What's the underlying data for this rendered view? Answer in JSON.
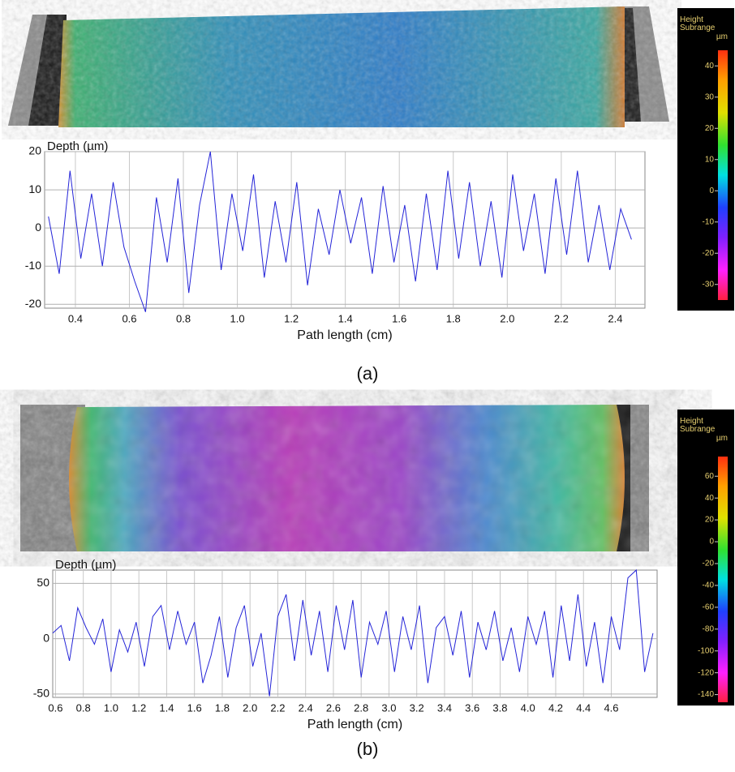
{
  "chart_data": [
    {
      "type": "line",
      "panel_label": "(a)",
      "ylabel": "Depth (µm)",
      "xlabel": "Path length (cm)",
      "color": "#2424d8",
      "grid": true,
      "xlim": [
        0.286,
        2.51
      ],
      "ylim": [
        -21,
        20
      ],
      "xticks": [
        0.4,
        0.6,
        0.8,
        {
          "value": 1,
          "label": "1.0"
        },
        1.2,
        1.4,
        1.6,
        1.8,
        {
          "value": 2,
          "label": "2.0"
        },
        2.2,
        2.4
      ],
      "yticks": [
        20,
        10,
        0,
        -10,
        -20
      ],
      "x": [
        0.3,
        0.34,
        0.38,
        0.42,
        0.46,
        0.5,
        0.54,
        0.58,
        0.62,
        0.66,
        0.7,
        0.74,
        0.78,
        0.82,
        0.86,
        0.9,
        0.94,
        0.98,
        1.02,
        1.06,
        1.1,
        1.14,
        1.18,
        1.22,
        1.26,
        1.3,
        1.34,
        1.38,
        1.42,
        1.46,
        1.5,
        1.54,
        1.58,
        1.62,
        1.66,
        1.7,
        1.74,
        1.78,
        1.82,
        1.86,
        1.9,
        1.94,
        1.98,
        2.02,
        2.06,
        2.1,
        2.14,
        2.18,
        2.22,
        2.26,
        2.3,
        2.34,
        2.38,
        2.42,
        2.46
      ],
      "values": [
        3,
        -12,
        15,
        -8,
        9,
        -10,
        12,
        -5,
        -14,
        -22,
        8,
        -9,
        13,
        -17,
        6,
        20,
        -11,
        9,
        -6,
        14,
        -13,
        7,
        -9,
        12,
        -15,
        5,
        -7,
        10,
        -4,
        8,
        -12,
        11,
        -9,
        6,
        -14,
        9,
        -11,
        15,
        -8,
        12,
        -10,
        7,
        -13,
        14,
        -6,
        9,
        -12,
        13,
        -7,
        15,
        -9,
        6,
        -11,
        5,
        -3
      ],
      "colorbar": {
        "title": "Height Subrange",
        "unit": "µm",
        "ylim": [
          -35,
          45
        ],
        "yticks": [
          40,
          30,
          20,
          10,
          0,
          -10,
          -20,
          -30
        ]
      }
    },
    {
      "type": "line",
      "panel_label": "(b)",
      "ylabel": "Depth (µm)",
      "xlabel": "Path length (cm)",
      "color": "#2424d8",
      "grid": true,
      "xlim": [
        0.58,
        4.93
      ],
      "ylim": [
        -53,
        62
      ],
      "xticks": [
        0.6,
        0.8,
        {
          "value": 1,
          "label": "1.0"
        },
        1.2,
        1.4,
        1.6,
        1.8,
        {
          "value": 2,
          "label": "2.0"
        },
        2.2,
        2.4,
        2.6,
        2.8,
        {
          "value": 3,
          "label": "3.0"
        },
        3.2,
        3.4,
        3.6,
        3.8,
        {
          "value": 4,
          "label": "4.0"
        },
        4.2,
        4.4,
        4.6
      ],
      "yticks": [
        50,
        0,
        -50
      ],
      "x": [
        0.58,
        0.64,
        0.7,
        0.76,
        0.82,
        0.88,
        0.94,
        1.0,
        1.06,
        1.12,
        1.18,
        1.24,
        1.3,
        1.36,
        1.42,
        1.48,
        1.54,
        1.6,
        1.66,
        1.72,
        1.78,
        1.84,
        1.9,
        1.96,
        2.02,
        2.08,
        2.14,
        2.2,
        2.26,
        2.32,
        2.38,
        2.44,
        2.5,
        2.56,
        2.62,
        2.68,
        2.74,
        2.8,
        2.86,
        2.92,
        2.98,
        3.04,
        3.1,
        3.16,
        3.22,
        3.28,
        3.34,
        3.4,
        3.46,
        3.52,
        3.58,
        3.64,
        3.7,
        3.76,
        3.82,
        3.88,
        3.94,
        4.0,
        4.06,
        4.12,
        4.18,
        4.24,
        4.3,
        4.36,
        4.42,
        4.48,
        4.54,
        4.6,
        4.66,
        4.72,
        4.78,
        4.84,
        4.9
      ],
      "values": [
        5,
        12,
        -20,
        28,
        10,
        -5,
        18,
        -30,
        8,
        -12,
        15,
        -25,
        20,
        30,
        -10,
        25,
        -5,
        15,
        -40,
        -15,
        20,
        -35,
        10,
        30,
        -25,
        5,
        -52,
        20,
        40,
        -20,
        35,
        -15,
        25,
        -30,
        30,
        -10,
        35,
        -35,
        15,
        -5,
        25,
        -30,
        20,
        -10,
        30,
        -40,
        10,
        20,
        -15,
        25,
        -35,
        15,
        -10,
        25,
        -20,
        10,
        -30,
        20,
        -5,
        25,
        -35,
        30,
        -20,
        40,
        -25,
        15,
        -40,
        20,
        -10,
        55,
        62,
        -30,
        5
      ],
      "colorbar": {
        "title": "Height Subrange",
        "unit": "µm",
        "ylim": [
          -147,
          78
        ],
        "yticks": [
          60,
          40,
          20,
          0,
          -20,
          -40,
          -60,
          -80,
          -100,
          -120,
          -140
        ]
      }
    }
  ]
}
